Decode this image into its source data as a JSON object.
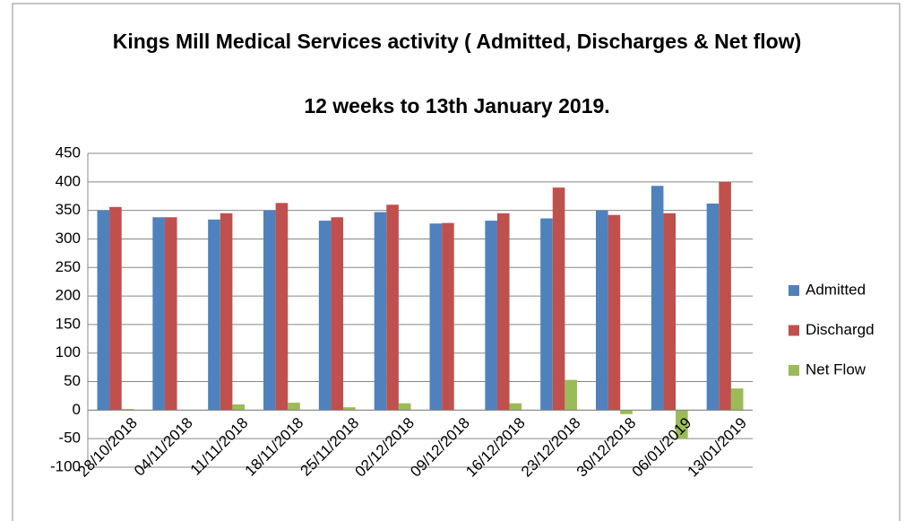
{
  "chart_data": {
    "type": "bar",
    "title": "Kings Mill Medical Services activity ( Admitted, Discharges & Net flow)",
    "subtitle": "12 weeks to 13th January 2019.",
    "categories": [
      "28/10/2018",
      "04/11/2018",
      "11/11/2018",
      "18/11/2018",
      "25/11/2018",
      "02/12/2018",
      "09/12/2018",
      "16/12/2018",
      "23/12/2018",
      "30/12/2018",
      "06/01/2019",
      "13/01/2019"
    ],
    "series": [
      {
        "name": "Admitted",
        "color": "#4f81bd",
        "values": [
          350,
          338,
          334,
          350,
          332,
          347,
          327,
          332,
          336,
          350,
          393,
          362
        ]
      },
      {
        "name": "Dischargd",
        "color": "#c0504d",
        "values": [
          356,
          338,
          345,
          363,
          338,
          360,
          328,
          345,
          390,
          342,
          345,
          400
        ]
      },
      {
        "name": "Net Flow",
        "color": "#9bbb59",
        "values": [
          2,
          0,
          10,
          13,
          5,
          12,
          0,
          12,
          53,
          -7,
          -50,
          38
        ]
      }
    ],
    "ylim": [
      -100,
      450
    ],
    "yticks": [
      -100,
      -50,
      0,
      50,
      100,
      150,
      200,
      250,
      300,
      350,
      400,
      450
    ],
    "grid": true,
    "legend": "right"
  }
}
